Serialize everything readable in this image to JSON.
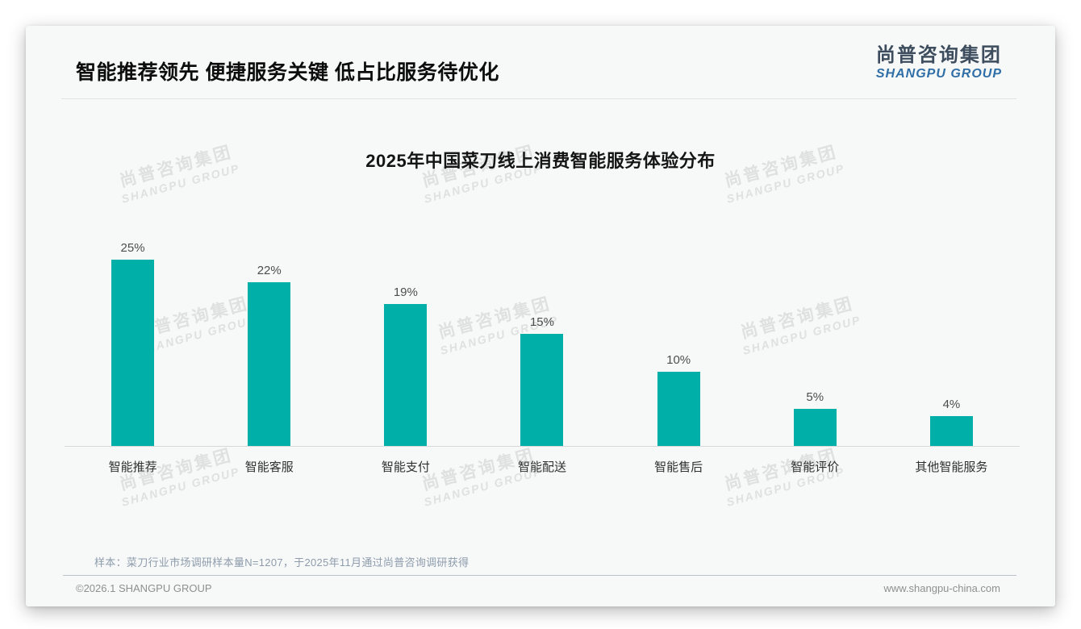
{
  "page": {
    "title": "智能推荐领先 便捷服务关键 低占比服务待优化",
    "logo": {
      "cn": "尚普咨询集团",
      "en": "SHANGPU GROUP"
    },
    "watermark": {
      "cn": "尚普咨询集团",
      "en": "SHANGPU GROUP"
    },
    "footnote": "样本：菜刀行业市场调研样本量N=1207，于2025年11月通过尚普咨询调研获得",
    "footer_left": "©2026.1 SHANGPU GROUP",
    "footer_right": "www.shangpu-china.com"
  },
  "chart_data": {
    "type": "bar",
    "title": "2025年中国菜刀线上消费智能服务体验分布",
    "categories": [
      "智能推荐",
      "智能客服",
      "智能支付",
      "智能配送",
      "智能售后",
      "智能评价",
      "其他智能服务"
    ],
    "values": [
      25,
      22,
      19,
      15,
      10,
      5,
      4
    ],
    "data_labels": [
      "25%",
      "22%",
      "19%",
      "15%",
      "10%",
      "5%",
      "4%"
    ],
    "unit": "%",
    "ylim": [
      0,
      27
    ],
    "bar_color": "#00AFA8",
    "grid": false,
    "legend": "none"
  },
  "colors": {
    "accent_teal": "#00AFA8",
    "logo_cn": "#3d4d5e",
    "logo_en": "#2f6ea6",
    "footnote_text": "#8e9cac",
    "card_bg": "#f7f8f8"
  }
}
